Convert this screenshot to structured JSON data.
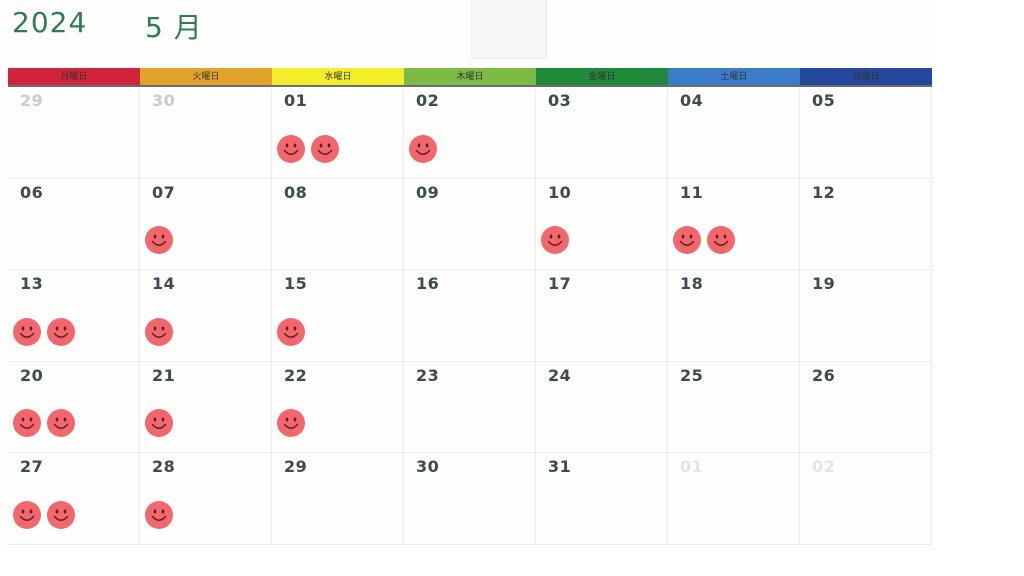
{
  "header": {
    "year": "2024",
    "month": "5 月"
  },
  "weekdays": [
    {
      "label": "月曜日",
      "color": "#d0243c"
    },
    {
      "label": "火曜日",
      "color": "#e3a32b"
    },
    {
      "label": "水曜日",
      "color": "#f2ee2a"
    },
    {
      "label": "木曜日",
      "color": "#7dbb47"
    },
    {
      "label": "金曜日",
      "color": "#1f8a3a"
    },
    {
      "label": "土曜日",
      "color": "#3a7cc7"
    },
    {
      "label": "日曜日",
      "color": "#24489b"
    }
  ],
  "sticker_color": "#f2666d",
  "weeks": [
    [
      {
        "day": "29",
        "style": "faded",
        "stickers": 0
      },
      {
        "day": "30",
        "style": "faded",
        "stickers": 0
      },
      {
        "day": "01",
        "style": "normal",
        "stickers": 2
      },
      {
        "day": "02",
        "style": "normal",
        "stickers": 1
      },
      {
        "day": "03",
        "style": "normal",
        "stickers": 0
      },
      {
        "day": "04",
        "style": "normal",
        "stickers": 0
      },
      {
        "day": "05",
        "style": "normal",
        "stickers": 0
      }
    ],
    [
      {
        "day": "06",
        "style": "normal",
        "stickers": 0
      },
      {
        "day": "07",
        "style": "normal",
        "stickers": 1
      },
      {
        "day": "08",
        "style": "normal",
        "stickers": 0
      },
      {
        "day": "09",
        "style": "normal",
        "stickers": 0
      },
      {
        "day": "10",
        "style": "normal",
        "stickers": 1
      },
      {
        "day": "11",
        "style": "normal",
        "stickers": 2
      },
      {
        "day": "12",
        "style": "normal",
        "stickers": 0
      }
    ],
    [
      {
        "day": "13",
        "style": "normal",
        "stickers": 2
      },
      {
        "day": "14",
        "style": "normal",
        "stickers": 1
      },
      {
        "day": "15",
        "style": "normal",
        "stickers": 1
      },
      {
        "day": "16",
        "style": "normal",
        "stickers": 0
      },
      {
        "day": "17",
        "style": "normal",
        "stickers": 0
      },
      {
        "day": "18",
        "style": "normal",
        "stickers": 0
      },
      {
        "day": "19",
        "style": "normal",
        "stickers": 0
      }
    ],
    [
      {
        "day": "20",
        "style": "normal",
        "stickers": 2
      },
      {
        "day": "21",
        "style": "normal",
        "stickers": 1
      },
      {
        "day": "22",
        "style": "normal",
        "stickers": 1
      },
      {
        "day": "23",
        "style": "normal",
        "stickers": 0
      },
      {
        "day": "24",
        "style": "normal",
        "stickers": 0
      },
      {
        "day": "25",
        "style": "normal",
        "stickers": 0
      },
      {
        "day": "26",
        "style": "normal",
        "stickers": 0
      }
    ],
    [
      {
        "day": "27",
        "style": "normal",
        "stickers": 2
      },
      {
        "day": "28",
        "style": "normal",
        "stickers": 1
      },
      {
        "day": "29",
        "style": "normal",
        "stickers": 0
      },
      {
        "day": "30",
        "style": "normal",
        "stickers": 0
      },
      {
        "day": "31",
        "style": "normal",
        "stickers": 0
      },
      {
        "day": "01",
        "style": "ghost",
        "stickers": 0
      },
      {
        "day": "02",
        "style": "ghost",
        "stickers": 0
      }
    ]
  ]
}
